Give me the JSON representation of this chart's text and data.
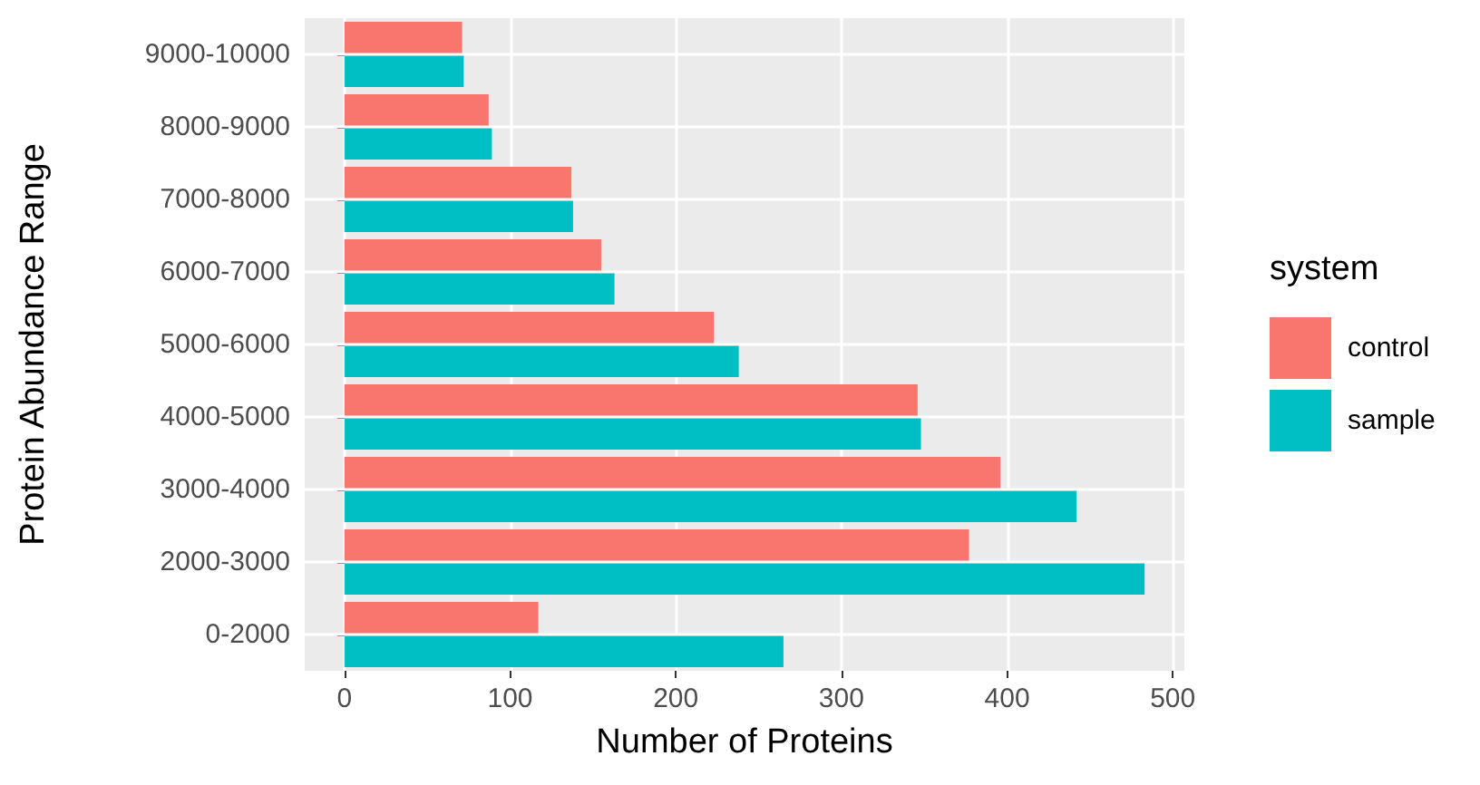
{
  "chart_data": {
    "type": "bar",
    "orientation": "horizontal",
    "xlabel": "Number of Proteins",
    "ylabel": "Protein Abundance Range",
    "legend_title": "system",
    "categories": [
      "9000-10000",
      "8000-9000",
      "7000-8000",
      "6000-7000",
      "5000-6000",
      "4000-5000",
      "3000-4000",
      "2000-3000",
      "0-2000"
    ],
    "series": [
      {
        "name": "control",
        "color": "#f8766d",
        "values": [
          71,
          87,
          137,
          155,
          223,
          346,
          396,
          377,
          117
        ]
      },
      {
        "name": "sample",
        "color": "#00bfc4",
        "values": [
          72,
          89,
          138,
          163,
          238,
          348,
          442,
          483,
          265
        ]
      }
    ],
    "xlim": [
      -24,
      507
    ],
    "xticks": [
      0,
      100,
      200,
      300,
      400,
      500
    ],
    "grid": true,
    "legend": "right"
  }
}
